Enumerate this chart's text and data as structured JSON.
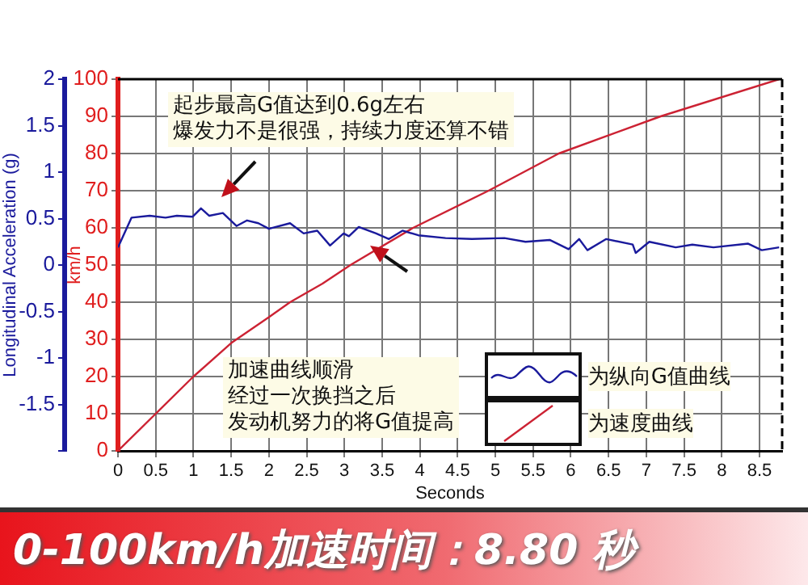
{
  "chart_data": {
    "type": "line",
    "xlabel": "Seconds",
    "ylabel": "Longitudinal Acceleration (g)",
    "y2label": "km/h",
    "xlim": [
      0,
      8.8
    ],
    "xticks": [
      0,
      0.5,
      1,
      1.5,
      2,
      2.5,
      3,
      3.5,
      4,
      4.5,
      5,
      5.5,
      6,
      6.5,
      7,
      7.5,
      8,
      8.5
    ],
    "ylim": [
      -2,
      2
    ],
    "yticks": [
      {
        "value": -2,
        "label": null
      },
      -1.5,
      -1,
      -0.5,
      0,
      0.5,
      1,
      1.5,
      2
    ],
    "y2lim": [
      0,
      100
    ],
    "y2ticks": [
      0,
      10,
      20,
      30,
      40,
      50,
      60,
      70,
      80,
      90,
      100
    ],
    "grid": true,
    "legend": "bottom right",
    "marker": "none",
    "line_style": "solid",
    "series": [
      {
        "name": "为纵向G值曲线",
        "color": "#1a1a9c",
        "axis": "y",
        "x": [
          0,
          0.18,
          0.42,
          0.63,
          0.78,
          0.99,
          1.1,
          1.21,
          1.39,
          1.57,
          1.71,
          1.86,
          2,
          2.28,
          2.46,
          2.64,
          2.81,
          2.99,
          3.06,
          3.19,
          3.42,
          3.59,
          3.77,
          3.98,
          4.34,
          4.69,
          5.12,
          5.4,
          5.72,
          5.97,
          6.11,
          6.22,
          6.47,
          6.82,
          6.86,
          7.04,
          7.39,
          7.61,
          7.89,
          8.35,
          8.53,
          8.76
        ],
        "values": [
          0.19,
          0.51,
          0.53,
          0.51,
          0.53,
          0.52,
          0.61,
          0.53,
          0.56,
          0.42,
          0.48,
          0.45,
          0.39,
          0.45,
          0.34,
          0.37,
          0.21,
          0.34,
          0.31,
          0.41,
          0.34,
          0.28,
          0.37,
          0.32,
          0.29,
          0.28,
          0.29,
          0.25,
          0.27,
          0.17,
          0.28,
          0.16,
          0.28,
          0.22,
          0.13,
          0.25,
          0.19,
          0.22,
          0.19,
          0.23,
          0.16,
          0.19
        ]
      },
      {
        "name": "为速度曲线",
        "color": "#cc2233",
        "axis": "y2",
        "x": [
          0,
          0.5,
          1,
          1.5,
          2,
          2.28,
          2.71,
          3.08,
          3.91,
          4.91,
          5.84,
          7.19,
          8.76
        ],
        "values": [
          0,
          10,
          20,
          29,
          36,
          40,
          45,
          50,
          60,
          70,
          80,
          90,
          100
        ]
      }
    ],
    "annotations": [
      "起步最高G值达到0.6g左右爆发力不是很强，持续力度还算不错",
      "加速曲线顺滑经过一次换挡之后发动机努力的将G值提高",
      "0-100km/h加速时间：8.80 秒"
    ]
  }
}
